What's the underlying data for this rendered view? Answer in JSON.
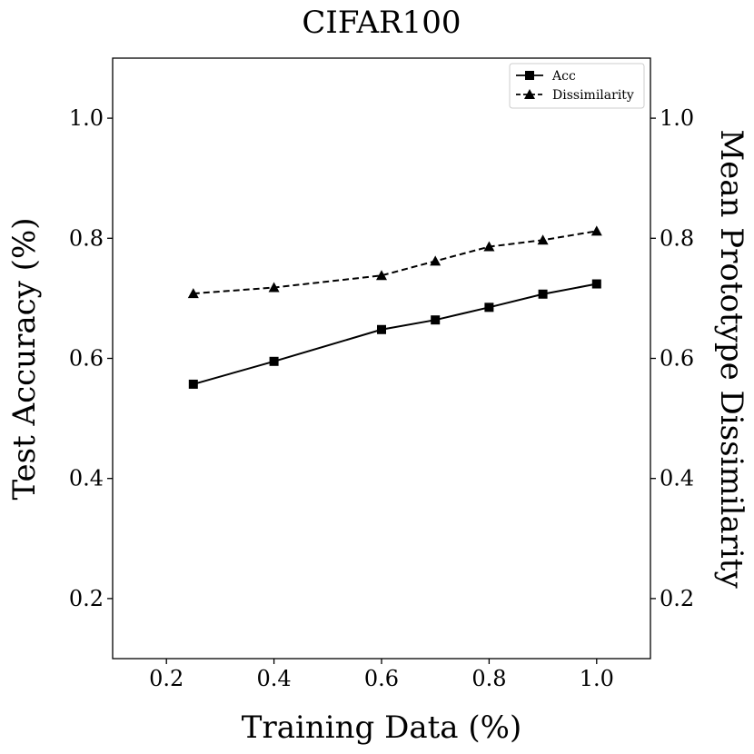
{
  "chart_data": {
    "type": "line",
    "title": "CIFAR100",
    "xlabel": "Training Data (%)",
    "ylabel_left": "Test Accuracy (%)",
    "ylabel_right": "Mean Prototype Dissimilarity",
    "xlim": [
      0.1,
      1.1
    ],
    "ylim": [
      0.1,
      1.1
    ],
    "xticks": [
      "0.2",
      "0.4",
      "0.6",
      "0.8",
      "1.0"
    ],
    "yticks": [
      "0.2",
      "0.4",
      "0.6",
      "0.8",
      "1.0"
    ],
    "grid": false,
    "legend_position": "top-right",
    "x": [
      0.25,
      0.4,
      0.6,
      0.7,
      0.8,
      0.9,
      1.0
    ],
    "series": [
      {
        "name": "Acc",
        "axis": "left",
        "marker": "square",
        "line_style": "solid",
        "color": "#000000",
        "values": [
          0.557,
          0.595,
          0.648,
          0.664,
          0.685,
          0.707,
          0.724
        ]
      },
      {
        "name": "Dissimilarity",
        "axis": "right",
        "marker": "triangle",
        "line_style": "dashed",
        "color": "#000000",
        "values": [
          0.708,
          0.718,
          0.738,
          0.762,
          0.786,
          0.797,
          0.812
        ]
      }
    ]
  }
}
